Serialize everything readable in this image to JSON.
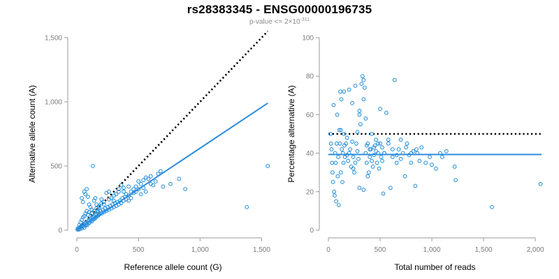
{
  "figure": {
    "title": "rs28383345 - ENSG00000196735",
    "subtitle_prefix": "p-value <= 2×10",
    "subtitle_exponent": "-311"
  },
  "chart_data": [
    {
      "type": "scatter",
      "xlabel": "Reference allele count (G)",
      "ylabel": "Alternative allele count (A)",
      "xlim": [
        0,
        1560
      ],
      "ylim": [
        0,
        1500
      ],
      "xticks": [
        0,
        500,
        1000,
        1500
      ],
      "xtick_labels": [
        "0",
        "500",
        "1,000",
        "1,500"
      ],
      "yticks": [
        0,
        500,
        1000,
        1500
      ],
      "ytick_labels": [
        "0",
        "500",
        "1,000",
        "1,500"
      ],
      "grid": false,
      "colors": {
        "points": "#1f8ad6",
        "fit_line": "#2b8ce0",
        "reference_line": "#000000"
      },
      "reference_line": {
        "style": "dotted",
        "from": [
          0,
          0
        ],
        "to": [
          1550,
          1550
        ]
      },
      "fit_line": {
        "style": "solid",
        "from": [
          0,
          0
        ],
        "to": [
          1550,
          990
        ]
      },
      "points": [
        [
          5,
          5
        ],
        [
          10,
          15
        ],
        [
          15,
          5
        ],
        [
          20,
          20
        ],
        [
          25,
          10
        ],
        [
          30,
          25
        ],
        [
          35,
          30
        ],
        [
          40,
          15
        ],
        [
          45,
          40
        ],
        [
          50,
          30
        ],
        [
          55,
          45
        ],
        [
          60,
          20
        ],
        [
          65,
          55
        ],
        [
          70,
          35
        ],
        [
          75,
          60
        ],
        [
          80,
          50
        ],
        [
          85,
          40
        ],
        [
          90,
          70
        ],
        [
          95,
          55
        ],
        [
          100,
          80
        ],
        [
          105,
          60
        ],
        [
          110,
          90
        ],
        [
          115,
          75
        ],
        [
          120,
          95
        ],
        [
          125,
          70
        ],
        [
          130,
          100
        ],
        [
          135,
          85
        ],
        [
          140,
          110
        ],
        [
          145,
          90
        ],
        [
          150,
          120
        ],
        [
          155,
          100
        ],
        [
          160,
          125
        ],
        [
          170,
          110
        ],
        [
          175,
          140
        ],
        [
          180,
          120
        ],
        [
          190,
          150
        ],
        [
          200,
          130
        ],
        [
          210,
          160
        ],
        [
          220,
          140
        ],
        [
          230,
          170
        ],
        [
          240,
          150
        ],
        [
          250,
          180
        ],
        [
          260,
          160
        ],
        [
          270,
          190
        ],
        [
          280,
          170
        ],
        [
          290,
          200
        ],
        [
          300,
          180
        ],
        [
          310,
          210
        ],
        [
          320,
          190
        ],
        [
          330,
          220
        ],
        [
          340,
          200
        ],
        [
          350,
          230
        ],
        [
          360,
          210
        ],
        [
          370,
          250
        ],
        [
          380,
          230
        ],
        [
          390,
          260
        ],
        [
          400,
          240
        ],
        [
          420,
          270
        ],
        [
          440,
          250
        ],
        [
          460,
          290
        ],
        [
          480,
          300
        ],
        [
          500,
          320
        ],
        [
          520,
          280
        ],
        [
          540,
          330
        ],
        [
          560,
          300
        ],
        [
          600,
          360
        ],
        [
          640,
          380
        ],
        [
          660,
          440
        ],
        [
          680,
          460
        ],
        [
          700,
          340
        ],
        [
          760,
          360
        ],
        [
          830,
          400
        ],
        [
          880,
          320
        ],
        [
          40,
          250
        ],
        [
          50,
          220
        ],
        [
          60,
          300
        ],
        [
          70,
          280
        ],
        [
          80,
          320
        ],
        [
          90,
          260
        ],
        [
          100,
          200
        ],
        [
          110,
          180
        ],
        [
          120,
          160
        ],
        [
          130,
          500
        ],
        [
          140,
          230
        ],
        [
          150,
          250
        ],
        [
          160,
          200
        ],
        [
          170,
          150
        ],
        [
          180,
          180
        ],
        [
          200,
          240
        ],
        [
          220,
          200
        ],
        [
          240,
          290
        ],
        [
          260,
          300
        ],
        [
          280,
          250
        ],
        [
          300,
          230
        ],
        [
          320,
          280
        ],
        [
          340,
          320
        ],
        [
          360,
          350
        ],
        [
          380,
          300
        ],
        [
          400,
          280
        ],
        [
          420,
          230
        ],
        [
          440,
          300
        ],
        [
          460,
          320
        ],
        [
          480,
          340
        ],
        [
          500,
          380
        ],
        [
          520,
          360
        ],
        [
          540,
          390
        ],
        [
          560,
          410
        ],
        [
          580,
          400
        ],
        [
          600,
          420
        ],
        [
          620,
          350
        ],
        [
          20,
          40
        ],
        [
          30,
          60
        ],
        [
          40,
          80
        ],
        [
          50,
          100
        ],
        [
          60,
          110
        ],
        [
          70,
          130
        ],
        [
          80,
          150
        ],
        [
          90,
          120
        ],
        [
          100,
          140
        ],
        [
          120,
          130
        ],
        [
          140,
          150
        ],
        [
          160,
          170
        ],
        [
          180,
          190
        ],
        [
          200,
          210
        ],
        [
          220,
          220
        ],
        [
          260,
          240
        ],
        [
          300,
          270
        ],
        [
          340,
          300
        ],
        [
          380,
          330
        ],
        [
          420,
          340
        ],
        [
          1380,
          180
        ],
        [
          1550,
          500
        ]
      ]
    },
    {
      "type": "scatter",
      "xlabel": "Total number of reads",
      "ylabel": "Percentage alternative (A)",
      "xlim": [
        0,
        2060
      ],
      "ylim": [
        0,
        100
      ],
      "xticks": [
        0,
        500,
        1000,
        1500,
        2000
      ],
      "xtick_labels": [
        "0",
        "500",
        "1,000",
        "1,500",
        "2,000"
      ],
      "yticks": [
        0,
        20,
        40,
        60,
        80,
        100
      ],
      "ytick_labels": [
        "0",
        "20",
        "40",
        "60",
        "80",
        "100"
      ],
      "grid": false,
      "colors": {
        "points": "#1f8ad6",
        "fit_line": "#2b8ce0",
        "reference_line": "#000000"
      },
      "reference_line": {
        "style": "dotted",
        "from": [
          0,
          50
        ],
        "to": [
          2060,
          50
        ]
      },
      "fit_line": {
        "style": "solid",
        "from": [
          0,
          39.3
        ],
        "to": [
          2060,
          39.3
        ]
      },
      "points": [
        [
          20,
          50
        ],
        [
          25,
          45
        ],
        [
          30,
          42
        ],
        [
          35,
          35
        ],
        [
          40,
          30
        ],
        [
          45,
          25
        ],
        [
          50,
          65
        ],
        [
          55,
          20
        ],
        [
          60,
          18
        ],
        [
          65,
          40
        ],
        [
          70,
          35
        ],
        [
          75,
          15
        ],
        [
          80,
          45
        ],
        [
          85,
          60
        ],
        [
          90,
          28
        ],
        [
          95,
          38
        ],
        [
          100,
          13
        ],
        [
          105,
          52
        ],
        [
          110,
          45
        ],
        [
          115,
          72
        ],
        [
          120,
          30
        ],
        [
          125,
          68
        ],
        [
          130,
          42
        ],
        [
          135,
          25
        ],
        [
          140,
          40
        ],
        [
          145,
          35
        ],
        [
          150,
          50
        ],
        [
          155,
          44
        ],
        [
          160,
          38
        ],
        [
          170,
          45
        ],
        [
          180,
          39
        ],
        [
          190,
          36
        ],
        [
          200,
          40
        ],
        [
          210,
          42
        ],
        [
          220,
          33
        ],
        [
          230,
          46
        ],
        [
          240,
          38
        ],
        [
          250,
          30
        ],
        [
          260,
          35
        ],
        [
          270,
          45
        ],
        [
          280,
          41
        ],
        [
          290,
          37
        ],
        [
          300,
          60
        ],
        [
          310,
          55
        ],
        [
          320,
          76
        ],
        [
          330,
          80
        ],
        [
          340,
          78
        ],
        [
          350,
          74
        ],
        [
          360,
          40
        ],
        [
          370,
          35
        ],
        [
          380,
          45
        ],
        [
          390,
          30
        ],
        [
          400,
          38
        ],
        [
          410,
          42
        ],
        [
          420,
          36
        ],
        [
          430,
          33
        ],
        [
          440,
          39
        ],
        [
          450,
          44
        ],
        [
          460,
          41
        ],
        [
          470,
          35
        ],
        [
          480,
          40
        ],
        [
          490,
          32
        ],
        [
          500,
          45
        ],
        [
          510,
          38
        ],
        [
          520,
          36
        ],
        [
          530,
          19
        ],
        [
          540,
          40
        ],
        [
          560,
          61
        ],
        [
          580,
          47
        ],
        [
          600,
          22
        ],
        [
          620,
          38
        ],
        [
          640,
          78
        ],
        [
          660,
          35
        ],
        [
          680,
          42
        ],
        [
          700,
          37
        ],
        [
          720,
          40
        ],
        [
          740,
          28
        ],
        [
          760,
          45
        ],
        [
          780,
          39
        ],
        [
          800,
          35
        ],
        [
          820,
          41
        ],
        [
          840,
          23
        ],
        [
          860,
          40
        ],
        [
          880,
          36
        ],
        [
          900,
          43
        ],
        [
          940,
          35
        ],
        [
          980,
          38
        ],
        [
          1000,
          34
        ],
        [
          1040,
          32
        ],
        [
          1080,
          40
        ],
        [
          1100,
          38
        ],
        [
          1140,
          41
        ],
        [
          1220,
          33
        ],
        [
          1230,
          26
        ],
        [
          1580,
          12
        ],
        [
          2050,
          24
        ],
        [
          150,
          72
        ],
        [
          200,
          73
        ],
        [
          230,
          66
        ],
        [
          260,
          75
        ],
        [
          280,
          51
        ],
        [
          300,
          62
        ],
        [
          340,
          68
        ],
        [
          360,
          58
        ],
        [
          370,
          44
        ],
        [
          400,
          42
        ],
        [
          420,
          50
        ],
        [
          440,
          43
        ],
        [
          460,
          47
        ],
        [
          480,
          45
        ],
        [
          500,
          63
        ],
        [
          520,
          43
        ],
        [
          540,
          40
        ],
        [
          580,
          45
        ],
        [
          620,
          42
        ],
        [
          660,
          39
        ],
        [
          700,
          47
        ],
        [
          750,
          43
        ],
        [
          800,
          40
        ],
        [
          850,
          42
        ],
        [
          120,
          52
        ],
        [
          180,
          48
        ],
        [
          240,
          32
        ],
        [
          300,
          22
        ],
        [
          340,
          21
        ],
        [
          380,
          28
        ]
      ]
    }
  ]
}
